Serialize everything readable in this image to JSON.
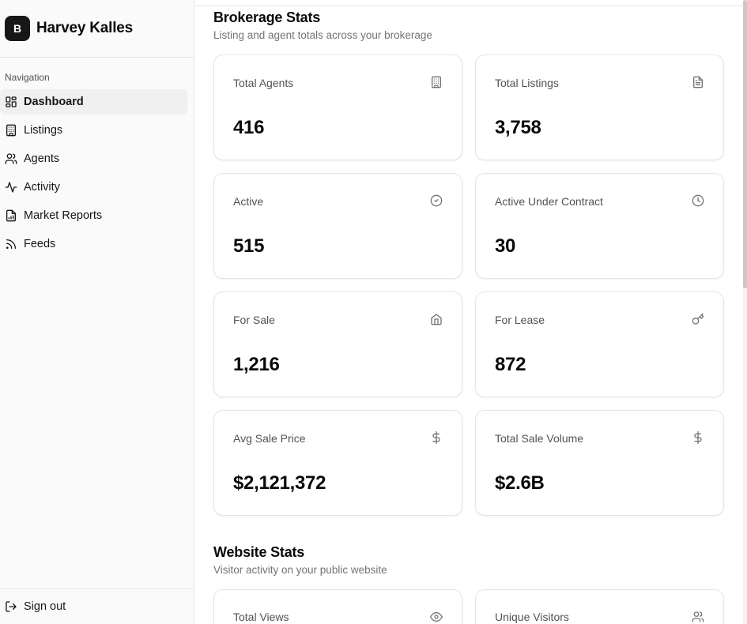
{
  "sidebar": {
    "brand": {
      "logo_letter": "B",
      "name": "Harvey Kalles"
    },
    "nav_label": "Navigation",
    "items": [
      {
        "label": "Dashboard",
        "icon": "dashboard-icon",
        "active": true
      },
      {
        "label": "Listings",
        "icon": "building-icon",
        "active": false
      },
      {
        "label": "Agents",
        "icon": "users-icon",
        "active": false
      },
      {
        "label": "Activity",
        "icon": "activity-icon",
        "active": false
      },
      {
        "label": "Market Reports",
        "icon": "file-chart-icon",
        "active": false
      },
      {
        "label": "Feeds",
        "icon": "rss-icon",
        "active": false
      }
    ],
    "signout_label": "Sign out"
  },
  "brokerage": {
    "title": "Brokerage Stats",
    "subtitle": "Listing and agent totals across your brokerage",
    "cards": [
      {
        "label": "Total Agents",
        "value": "416",
        "icon": "building-icon"
      },
      {
        "label": "Total Listings",
        "value": "3,758",
        "icon": "document-icon"
      },
      {
        "label": "Active",
        "value": "515",
        "icon": "check-circle-icon"
      },
      {
        "label": "Active Under Contract",
        "value": "30",
        "icon": "clock-icon"
      },
      {
        "label": "For Sale",
        "value": "1,216",
        "icon": "home-icon"
      },
      {
        "label": "For Lease",
        "value": "872",
        "icon": "key-icon"
      },
      {
        "label": "Avg Sale Price",
        "value": "$2,121,372",
        "icon": "dollar-icon"
      },
      {
        "label": "Total Sale Volume",
        "value": "$2.6B",
        "icon": "dollar-icon"
      }
    ]
  },
  "website": {
    "title": "Website Stats",
    "subtitle": "Visitor activity on your public website",
    "cards": [
      {
        "label": "Total Views",
        "icon": "eye-icon"
      },
      {
        "label": "Unique Visitors",
        "icon": "users-icon"
      }
    ]
  },
  "colors": {
    "sidebar_bg": "#fafafa",
    "border": "#e5e5e5",
    "text": "#0a0a0a",
    "muted": "#737373",
    "logo_bg": "#171717"
  }
}
